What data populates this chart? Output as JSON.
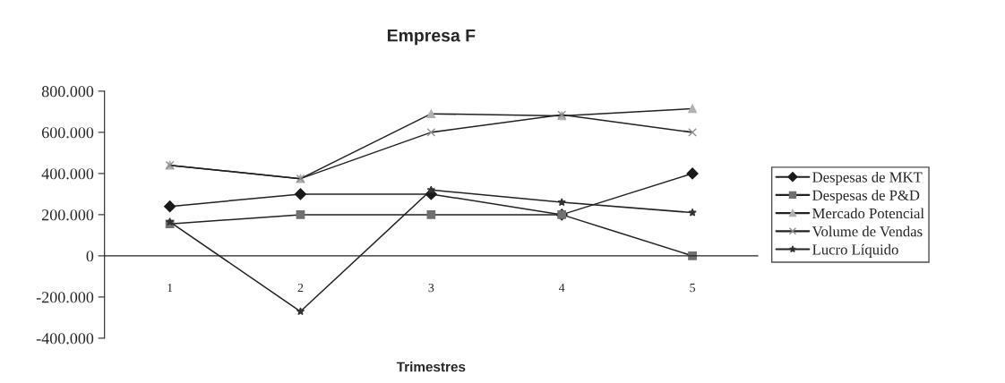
{
  "chart_data": {
    "type": "line",
    "title": "Empresa F",
    "xlabel": "Trimestres",
    "categories": [
      "1",
      "2",
      "3",
      "4",
      "5"
    ],
    "series": [
      {
        "name": "Despesas de MKT",
        "color": "#1a1a1a",
        "marker": "diamond",
        "values": [
          240000,
          300000,
          300000,
          200000,
          400000
        ]
      },
      {
        "name": "Despesas de P&D",
        "color": "#707070",
        "marker": "square",
        "values": [
          155000,
          200000,
          200000,
          200000,
          0
        ]
      },
      {
        "name": "Mercado Potencial",
        "color": "#b0b0b0",
        "marker": "triangle",
        "values": [
          440000,
          375000,
          690000,
          680000,
          715000
        ]
      },
      {
        "name": "Volume de Vendas",
        "color": "#909090",
        "marker": "cross",
        "values": [
          440000,
          375000,
          600000,
          685000,
          600000
        ]
      },
      {
        "name": "Lucro Líquido",
        "color": "#333333",
        "marker": "star",
        "values": [
          165000,
          -270000,
          320000,
          260000,
          210000
        ]
      }
    ],
    "ylim": [
      -400000,
      800000
    ],
    "yticks": [
      {
        "value": -400000,
        "label": "-400.000"
      },
      {
        "value": -200000,
        "label": "-200.000"
      },
      0,
      {
        "value": 200000,
        "label": "200.000"
      },
      {
        "value": 400000,
        "label": "400.000"
      },
      {
        "value": 600000,
        "label": "600.000"
      },
      {
        "value": 800000,
        "label": "800.000"
      }
    ],
    "grid": false,
    "legend": "right",
    "line_style": "solid"
  }
}
